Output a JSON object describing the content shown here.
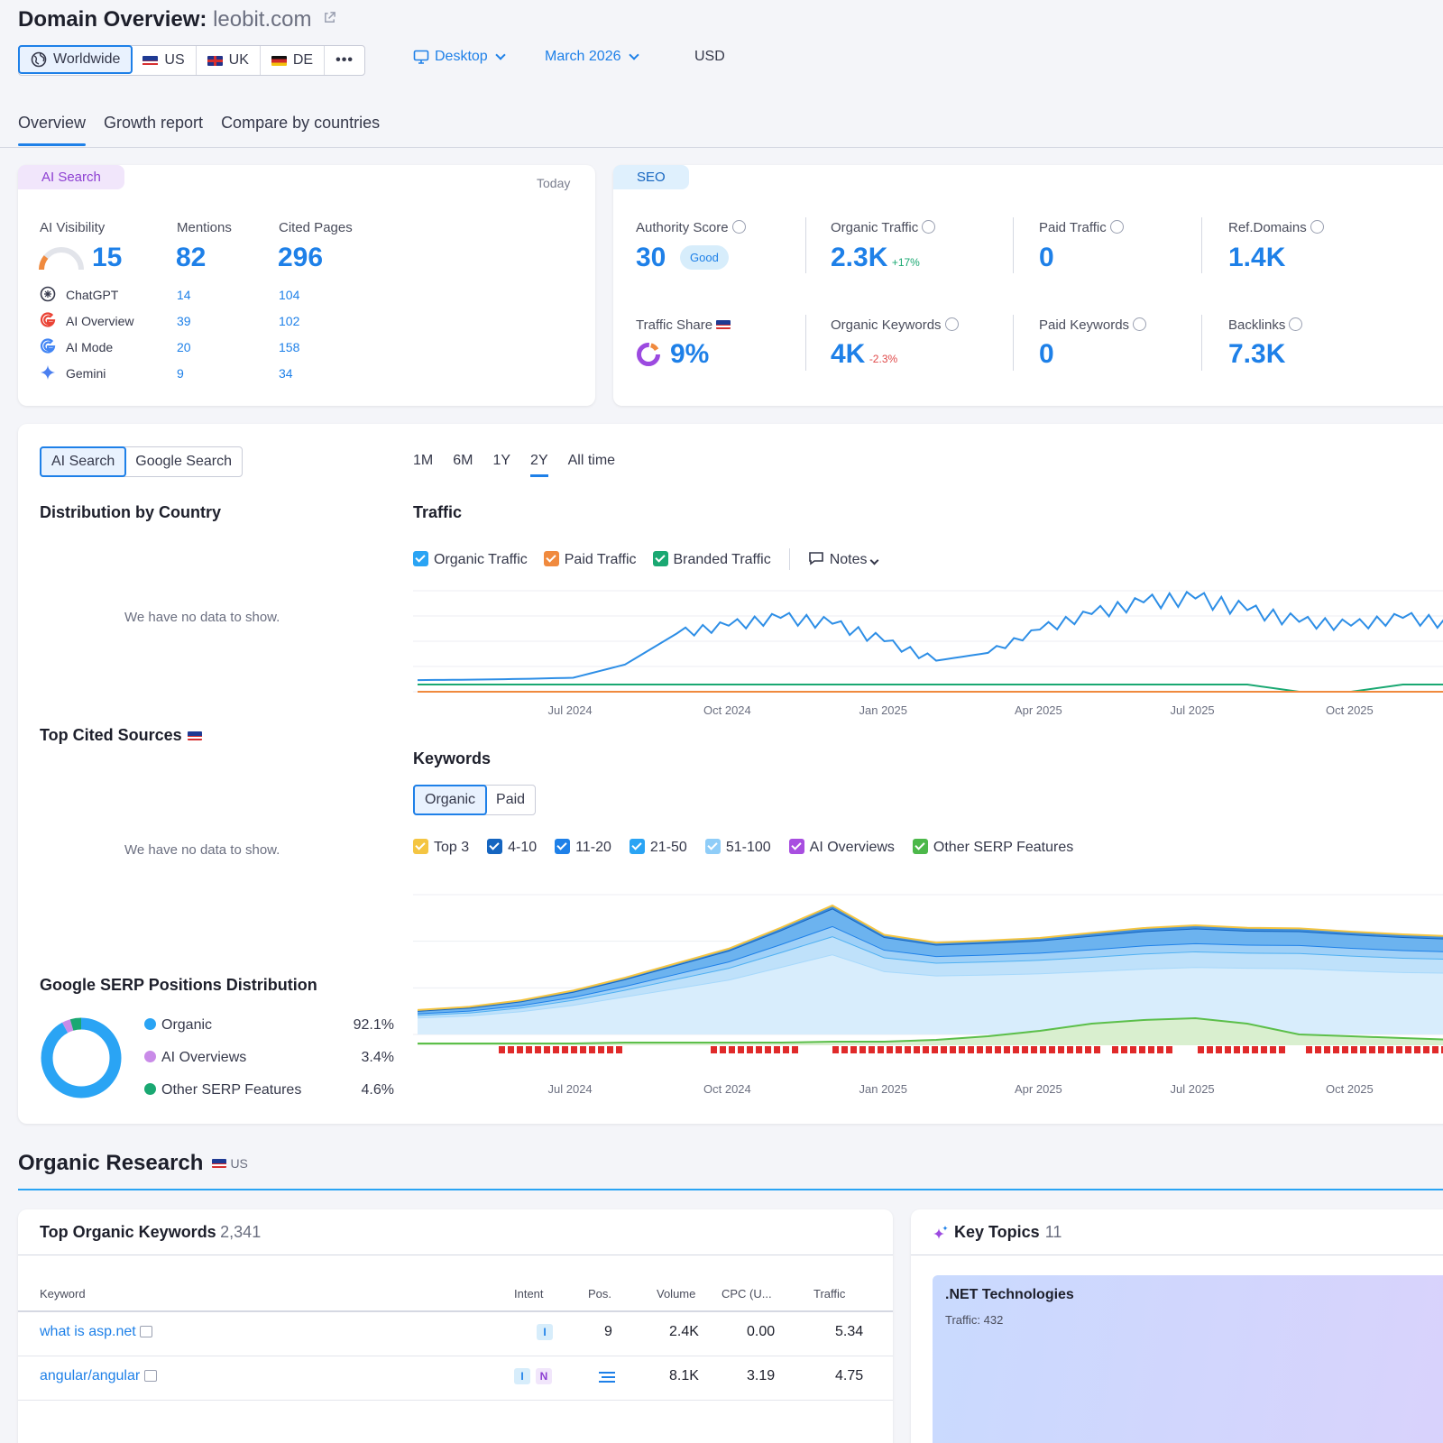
{
  "header": {
    "title": "Domain Overview:",
    "domain": "leobit.com",
    "ext_icon": "external-link-icon"
  },
  "regions": [
    {
      "label": "Worldwide",
      "icon": "globe-icon",
      "active": true
    },
    {
      "label": "US",
      "icon": "us-flag"
    },
    {
      "label": "UK",
      "icon": "uk-flag"
    },
    {
      "label": "DE",
      "icon": "de-flag"
    },
    {
      "label": "•••",
      "icon": "more-icon"
    }
  ],
  "device": "Desktop",
  "date": "March 2026",
  "currency": "USD",
  "tabs": [
    "Overview",
    "Growth report",
    "Compare by countries"
  ],
  "ai_card": {
    "pill": "AI Search",
    "when": "Today",
    "headers": [
      "AI Visibility",
      "Mentions",
      "Cited Pages"
    ],
    "totals": [
      "15",
      "82",
      "296"
    ],
    "rows": [
      {
        "name": "ChatGPT",
        "mentions": "14",
        "pages": "104"
      },
      {
        "name": "AI Overview",
        "mentions": "39",
        "pages": "102"
      },
      {
        "name": "AI Mode",
        "mentions": "20",
        "pages": "158"
      },
      {
        "name": "Gemini",
        "mentions": "9",
        "pages": "34"
      }
    ]
  },
  "seo_card": {
    "pill": "SEO",
    "metrics": [
      {
        "label": "Authority Score",
        "value": "30",
        "badge": "Good"
      },
      {
        "label": "Organic Traffic",
        "value": "2.3K",
        "delta": "+17%"
      },
      {
        "label": "Paid Traffic",
        "value": "0"
      },
      {
        "label": "Ref.Domains",
        "value": "1.4K"
      },
      {
        "label": "Traffic Share",
        "value": "9%"
      },
      {
        "label": "Organic Keywords",
        "value": "4K",
        "delta": "-2.3%"
      },
      {
        "label": "Paid Keywords",
        "value": "0"
      },
      {
        "label": "Backlinks",
        "value": "7.3K"
      }
    ]
  },
  "main": {
    "source_toggle": [
      "AI Search",
      "Google Search"
    ],
    "periods": [
      "1M",
      "6M",
      "1Y",
      "2Y",
      "All time"
    ],
    "dist_title": "Distribution by Country",
    "no_data": "We have no data to show.",
    "cited_title": "Top Cited Sources",
    "serp_title": "Google SERP Positions Distribution",
    "serp_items": [
      {
        "name": "Organic",
        "value": "92.1%",
        "color": "#2aa4f4"
      },
      {
        "name": "AI Overviews",
        "value": "3.4%",
        "color": "#c98be8"
      },
      {
        "name": "Other SERP Features",
        "value": "4.6%",
        "color": "#1aa872"
      }
    ],
    "traffic_title": "Traffic",
    "traffic_legend": [
      "Organic Traffic",
      "Paid Traffic",
      "Branded Traffic"
    ],
    "notes": "Notes",
    "keywords_title": "Keywords",
    "kw_toggle": [
      "Organic",
      "Paid"
    ],
    "kw_legend": [
      "Top 3",
      "4-10",
      "11-20",
      "21-50",
      "51-100",
      "AI Overviews",
      "Other SERP Features"
    ],
    "x_ticks": [
      "Jul 2024",
      "Oct 2024",
      "Jan 2025",
      "Apr 2025",
      "Jul 2025",
      "Oct 2025"
    ]
  },
  "chart_data": [
    {
      "type": "line",
      "title": "Traffic",
      "x": [
        "Apr 2024",
        "May 2024",
        "Jun 2024",
        "Jul 2024",
        "Aug 2024",
        "Sep 2024",
        "Oct 2024",
        "Nov 2024",
        "Dec 2024",
        "Jan 2025",
        "Feb 2025",
        "Mar 2025",
        "Apr 2025",
        "May 2025",
        "Jun 2025",
        "Jul 2025",
        "Aug 2025",
        "Sep 2025",
        "Oct 2025",
        "Nov 2025",
        "Dec 2025"
      ],
      "series": [
        {
          "name": "Organic Traffic",
          "color": "#2d8ee6",
          "values": [
            300,
            310,
            330,
            360,
            700,
            1500,
            1700,
            1900,
            1750,
            1300,
            800,
            1000,
            1600,
            2000,
            2300,
            2400,
            2100,
            1800,
            1700,
            1900,
            1750
          ]
        },
        {
          "name": "Paid Traffic",
          "color": "#f08a3e",
          "values": [
            0,
            0,
            0,
            0,
            0,
            0,
            0,
            0,
            0,
            0,
            0,
            0,
            0,
            0,
            0,
            0,
            0,
            0,
            0,
            0,
            0
          ]
        },
        {
          "name": "Branded Traffic",
          "color": "#1aa872",
          "values": [
            160,
            160,
            160,
            160,
            160,
            160,
            160,
            160,
            160,
            160,
            160,
            160,
            160,
            160,
            160,
            160,
            160,
            20,
            20,
            160,
            160
          ]
        }
      ],
      "xticks": [
        "Jul 2024",
        "Oct 2024",
        "Jan 2025",
        "Apr 2025",
        "Jul 2025",
        "Oct 2025"
      ]
    },
    {
      "type": "area",
      "title": "Keywords",
      "x": [
        "Apr 2024",
        "May 2024",
        "Jun 2024",
        "Jul 2024",
        "Aug 2024",
        "Sep 2024",
        "Oct 2024",
        "Nov 2024",
        "Dec 2024",
        "Jan 2025",
        "Feb 2025",
        "Mar 2025",
        "Apr 2025",
        "May 2025",
        "Jun 2025",
        "Jul 2025",
        "Aug 2025",
        "Sep 2025",
        "Oct 2025",
        "Nov 2025",
        "Dec 2025"
      ],
      "series": [
        {
          "name": "Top 3",
          "color": "#f4c542",
          "values": [
            20,
            22,
            25,
            30,
            35,
            40,
            45,
            60,
            70,
            55,
            50,
            52,
            60,
            70,
            75,
            75,
            70,
            68,
            65,
            65,
            62
          ]
        },
        {
          "name": "4-10",
          "color": "#1565c0",
          "values": [
            60,
            70,
            90,
            120,
            160,
            210,
            260,
            330,
            420,
            300,
            270,
            280,
            290,
            320,
            340,
            350,
            330,
            330,
            320,
            310,
            300
          ]
        },
        {
          "name": "11-20",
          "color": "#1e80e8",
          "values": [
            40,
            45,
            55,
            70,
            90,
            120,
            150,
            190,
            240,
            180,
            160,
            165,
            170,
            180,
            190,
            195,
            190,
            190,
            185,
            180,
            175
          ]
        },
        {
          "name": "21-50",
          "color": "#4fb0f2",
          "values": [
            60,
            70,
            90,
            120,
            160,
            220,
            280,
            350,
            430,
            330,
            300,
            310,
            320,
            340,
            360,
            370,
            360,
            360,
            350,
            340,
            330
          ]
        },
        {
          "name": "51-100",
          "color": "#a6d8fb",
          "values": [
            400,
            450,
            550,
            700,
            900,
            1100,
            1300,
            1600,
            1900,
            1500,
            1400,
            1420,
            1450,
            1500,
            1560,
            1600,
            1580,
            1570,
            1520,
            1480,
            1460
          ]
        },
        {
          "name": "AI Overviews",
          "color": "#c98be8",
          "values": [
            5,
            5,
            5,
            5,
            5,
            5,
            5,
            5,
            5,
            5,
            5,
            5,
            5,
            5,
            5,
            5,
            5,
            5,
            5,
            5,
            5
          ]
        },
        {
          "name": "Other SERP Features",
          "color": "#5cbf4a",
          "values": [
            10,
            10,
            10,
            10,
            15,
            15,
            15,
            15,
            20,
            20,
            30,
            50,
            80,
            120,
            140,
            150,
            120,
            60,
            50,
            40,
            30
          ]
        }
      ],
      "xticks": [
        "Jul 2024",
        "Oct 2024",
        "Jan 2025",
        "Apr 2025",
        "Jul 2025",
        "Oct 2025"
      ]
    },
    {
      "type": "pie",
      "title": "Google SERP Positions Distribution",
      "categories": [
        "Organic",
        "AI Overviews",
        "Other SERP Features"
      ],
      "values": [
        92.1,
        3.4,
        4.6
      ]
    }
  ],
  "organic": {
    "title": "Organic Research",
    "region": "US",
    "kw_title": "Top Organic Keywords",
    "kw_count": "2,341",
    "columns": [
      "Keyword",
      "Intent",
      "Pos.",
      "Volume",
      "CPC (U...",
      "Traffic"
    ],
    "rows": [
      {
        "keyword": "what is asp.net",
        "intent": [
          "I"
        ],
        "pos": "9",
        "volume": "2.4K",
        "cpc": "0.00",
        "traffic": "5.34"
      },
      {
        "keyword": "angular/angular",
        "intent": [
          "I",
          "N"
        ],
        "pos": "",
        "volume": "8.1K",
        "cpc": "3.19",
        "traffic": "4.75"
      }
    ],
    "topics_title": "Key Topics",
    "topics_count": "11",
    "topic": {
      "name": ".NET Technologies",
      "traffic": "Traffic: 432"
    }
  }
}
